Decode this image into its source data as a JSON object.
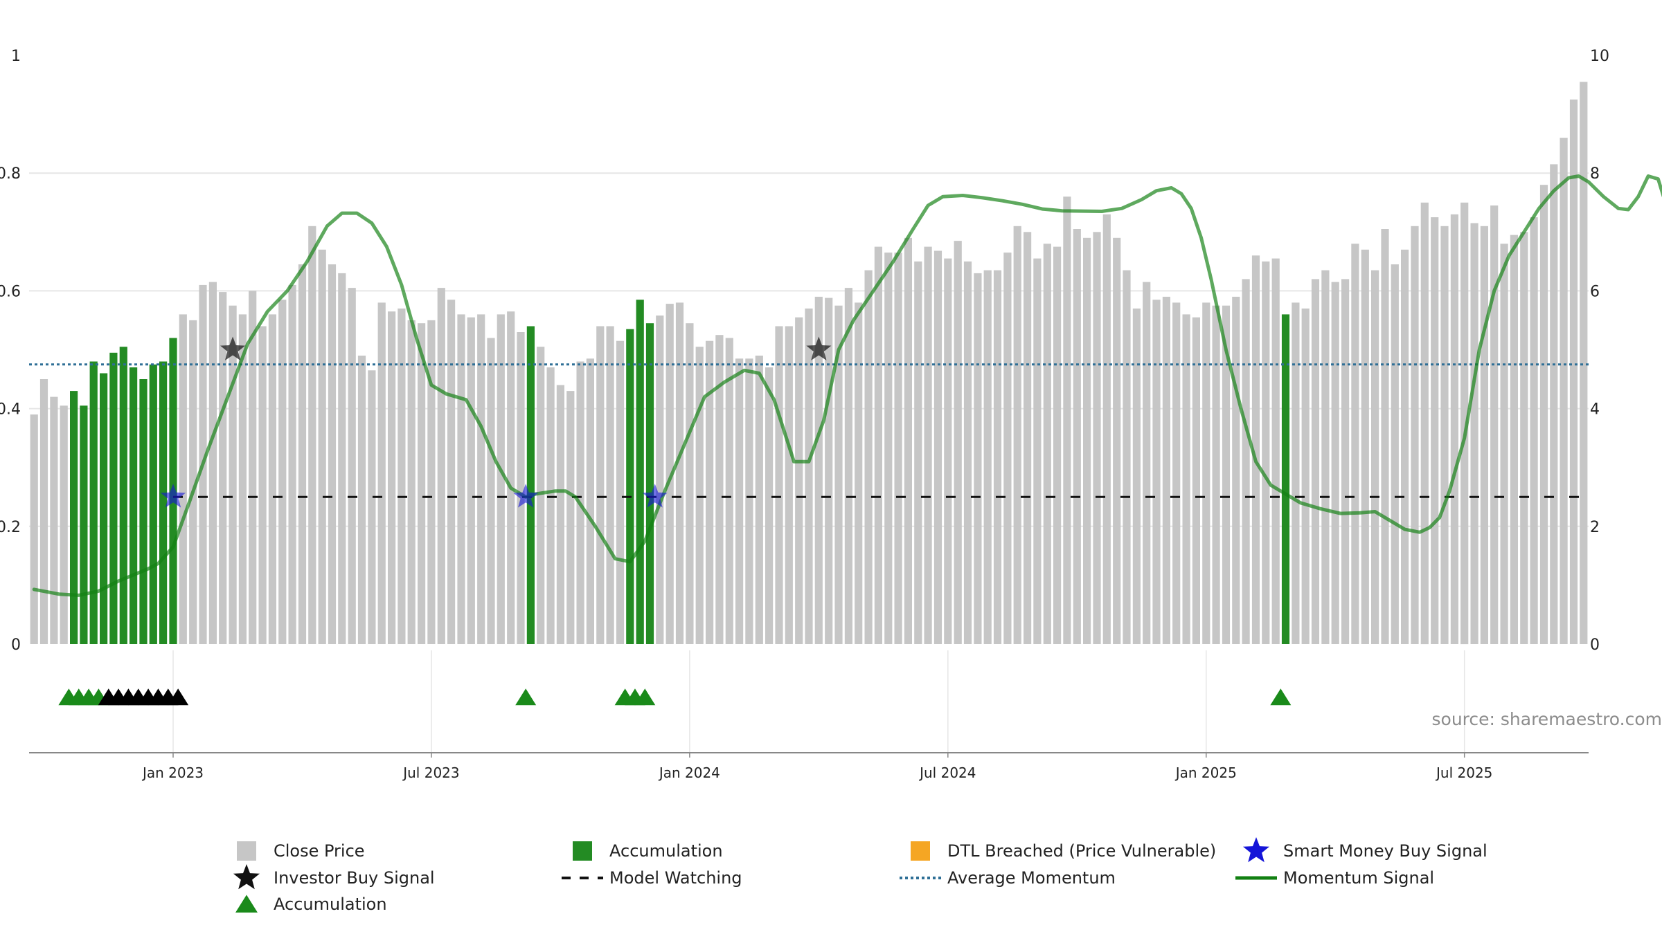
{
  "source": "source: sharemaestro.com",
  "chart_data": {
    "type": "bar",
    "x_axis": {
      "tick_labels": [
        "Jan 2023",
        "Jul 2023",
        "Jan 2024",
        "Jul 2024",
        "Jan 2025",
        "Jul 2025"
      ],
      "tick_weeks": [
        14.5,
        40.5,
        66.5,
        92.5,
        118.5,
        144.5
      ],
      "range_weeks": [
        0,
        157
      ]
    },
    "left_axis": {
      "range": [
        0,
        1
      ],
      "ticks": [
        "0",
        "0.2",
        "0.4",
        "0.6",
        "0.8",
        "1"
      ],
      "tick_values": [
        0,
        0.2,
        0.4,
        0.6,
        0.8,
        1
      ]
    },
    "right_axis": {
      "range": [
        0,
        10
      ],
      "ticks": [
        "0",
        "2",
        "4",
        "6",
        "8",
        "10"
      ],
      "tick_values": [
        0,
        2,
        4,
        6,
        8,
        10
      ]
    },
    "grid": "horizontal",
    "close_price": [
      3.9,
      4.5,
      4.2,
      4.05,
      4.3,
      4.05,
      4.8,
      4.6,
      4.95,
      5.05,
      4.7,
      4.5,
      4.75,
      4.8,
      5.2,
      5.6,
      5.5,
      6.1,
      6.15,
      5.98,
      5.75,
      5.6,
      6.0,
      5.4,
      5.6,
      5.85,
      6.1,
      6.45,
      7.1,
      6.7,
      6.45,
      6.3,
      6.05,
      4.9,
      4.65,
      5.8,
      5.65,
      5.7,
      5.5,
      5.45,
      5.5,
      6.05,
      5.85,
      5.6,
      5.55,
      5.6,
      5.2,
      5.6,
      5.65,
      5.3,
      5.4,
      5.05,
      4.7,
      4.4,
      4.3,
      4.8,
      4.85,
      5.4,
      5.4,
      5.15,
      5.35,
      5.85,
      5.45,
      5.58,
      5.78,
      5.8,
      5.45,
      5.05,
      5.15,
      5.25,
      5.2,
      4.85,
      4.85,
      4.9,
      4.7,
      5.4,
      5.4,
      5.55,
      5.7,
      5.9,
      5.88,
      5.75,
      6.05,
      5.8,
      6.35,
      6.75,
      6.65,
      6.65,
      6.9,
      6.5,
      6.75,
      6.68,
      6.55,
      6.85,
      6.5,
      6.3,
      6.35,
      6.35,
      6.65,
      7.1,
      7.0,
      6.55,
      6.8,
      6.75,
      7.6,
      7.05,
      6.9,
      7.0,
      7.3,
      6.9,
      6.35,
      5.7,
      6.15,
      5.85,
      5.9,
      5.8,
      5.6,
      5.55,
      5.8,
      5.75,
      5.75,
      5.9,
      6.2,
      6.6,
      6.5,
      6.55,
      5.6,
      5.8,
      5.7,
      6.2,
      6.35,
      6.15,
      6.2,
      6.8,
      6.7,
      6.35,
      7.05,
      6.45,
      6.7,
      7.1,
      7.5,
      7.25,
      7.1,
      7.3,
      7.5,
      7.15,
      7.1,
      7.45,
      6.8,
      6.95,
      7.0,
      7.25,
      7.8,
      8.15,
      8.6,
      9.25,
      9.55
    ],
    "accumulation_weeks": [
      4,
      5,
      6,
      7,
      8,
      9,
      10,
      11,
      12,
      13,
      14,
      50,
      60,
      61,
      62,
      126
    ],
    "momentum_signal": [
      [
        0.5,
        0.093
      ],
      [
        3,
        0.085
      ],
      [
        5,
        0.083
      ],
      [
        7,
        0.09
      ],
      [
        9,
        0.107
      ],
      [
        12,
        0.128
      ],
      [
        13,
        0.137
      ],
      [
        14.5,
        0.165
      ],
      [
        16,
        0.235
      ],
      [
        18,
        0.33
      ],
      [
        20,
        0.42
      ],
      [
        22,
        0.51
      ],
      [
        24,
        0.565
      ],
      [
        26,
        0.6
      ],
      [
        28,
        0.65
      ],
      [
        30,
        0.71
      ],
      [
        31.5,
        0.732
      ],
      [
        33,
        0.732
      ],
      [
        34.5,
        0.715
      ],
      [
        36,
        0.675
      ],
      [
        37.5,
        0.61
      ],
      [
        39,
        0.52
      ],
      [
        40.5,
        0.44
      ],
      [
        42,
        0.425
      ],
      [
        44,
        0.415
      ],
      [
        45.5,
        0.37
      ],
      [
        47,
        0.31
      ],
      [
        48.5,
        0.265
      ],
      [
        50,
        0.25
      ],
      [
        51,
        0.255
      ],
      [
        53,
        0.26
      ],
      [
        54,
        0.26
      ],
      [
        55,
        0.25
      ],
      [
        57,
        0.2
      ],
      [
        59,
        0.145
      ],
      [
        60.5,
        0.14
      ],
      [
        62,
        0.175
      ],
      [
        64,
        0.26
      ],
      [
        66,
        0.34
      ],
      [
        68,
        0.42
      ],
      [
        70,
        0.445
      ],
      [
        71,
        0.455
      ],
      [
        72,
        0.465
      ],
      [
        73.5,
        0.46
      ],
      [
        75,
        0.415
      ],
      [
        77,
        0.31
      ],
      [
        78.5,
        0.31
      ],
      [
        80,
        0.38
      ],
      [
        81.5,
        0.5
      ],
      [
        83,
        0.55
      ],
      [
        85,
        0.6
      ],
      [
        87,
        0.65
      ],
      [
        89,
        0.705
      ],
      [
        90.5,
        0.745
      ],
      [
        92,
        0.76
      ],
      [
        94,
        0.762
      ],
      [
        96,
        0.758
      ],
      [
        98,
        0.753
      ],
      [
        100,
        0.747
      ],
      [
        102,
        0.739
      ],
      [
        104,
        0.736
      ],
      [
        108,
        0.735
      ],
      [
        110,
        0.74
      ],
      [
        112,
        0.755
      ],
      [
        113.5,
        0.77
      ],
      [
        115,
        0.775
      ],
      [
        116,
        0.765
      ],
      [
        117,
        0.74
      ],
      [
        118,
        0.69
      ],
      [
        119,
        0.62
      ],
      [
        120.5,
        0.5
      ],
      [
        122,
        0.4
      ],
      [
        123.5,
        0.31
      ],
      [
        125,
        0.27
      ],
      [
        126.5,
        0.255
      ],
      [
        128,
        0.24
      ],
      [
        130,
        0.23
      ],
      [
        132,
        0.222
      ],
      [
        134,
        0.223
      ],
      [
        135.5,
        0.225
      ],
      [
        137,
        0.21
      ],
      [
        138.5,
        0.195
      ],
      [
        140,
        0.19
      ],
      [
        141,
        0.198
      ],
      [
        142,
        0.215
      ],
      [
        143,
        0.26
      ],
      [
        144.5,
        0.35
      ],
      [
        146,
        0.5
      ],
      [
        147.5,
        0.6
      ],
      [
        149,
        0.66
      ],
      [
        150.5,
        0.7
      ],
      [
        152,
        0.74
      ],
      [
        153.5,
        0.77
      ],
      [
        155,
        0.792
      ],
      [
        156,
        0.795
      ],
      [
        157,
        0.785
      ],
      [
        158.5,
        0.76
      ],
      [
        160,
        0.74
      ],
      [
        161,
        0.738
      ],
      [
        162,
        0.76
      ],
      [
        163,
        0.795
      ],
      [
        164,
        0.79
      ],
      [
        165,
        0.735
      ],
      [
        166,
        0.73
      ],
      [
        167,
        0.755
      ]
    ],
    "average_momentum": 0.475,
    "model_watching_level": 0.25,
    "model_watching_from_week": 14.5,
    "investor_buy_signals": [
      [
        20.5,
        0.5
      ],
      [
        79.5,
        0.5
      ]
    ],
    "smart_money_buy_signals": [
      [
        14.5,
        0.25
      ],
      [
        50,
        0.25
      ],
      [
        63,
        0.25
      ]
    ],
    "accumulation_markers": [
      {
        "week": 4,
        "color": "#1a8a1a"
      },
      {
        "week": 5,
        "color": "#1a8a1a"
      },
      {
        "week": 6,
        "color": "#1a8a1a"
      },
      {
        "week": 7,
        "color": "#1a8a1a"
      },
      {
        "week": 8,
        "color": "#000000"
      },
      {
        "week": 9,
        "color": "#000000"
      },
      {
        "week": 10,
        "color": "#000000"
      },
      {
        "week": 11,
        "color": "#000000"
      },
      {
        "week": 12,
        "color": "#000000"
      },
      {
        "week": 13,
        "color": "#000000"
      },
      {
        "week": 14,
        "color": "#000000"
      },
      {
        "week": 15,
        "color": "#000000"
      },
      {
        "week": 50,
        "color": "#1a8a1a"
      },
      {
        "week": 60,
        "color": "#1a8a1a"
      },
      {
        "week": 61,
        "color": "#1a8a1a"
      },
      {
        "week": 62,
        "color": "#1a8a1a"
      },
      {
        "week": 126,
        "color": "#1a8a1a"
      }
    ],
    "colors": {
      "close_price": "#c6c6c6",
      "accumulation": "#238b23",
      "dtl_breached": "#f5a623",
      "smart_money": "#1515d8",
      "investor": "#111111",
      "momentum": "#128012",
      "average_momentum": "#2e6f96",
      "model_watching": "#111111"
    },
    "legend": [
      {
        "label": "Close Price",
        "marker": "square-gray"
      },
      {
        "label": "Accumulation",
        "marker": "square-green"
      },
      {
        "label": "DTL Breached (Price Vulnerable)",
        "marker": "square-orange"
      },
      {
        "label": "Smart Money Buy Signal",
        "marker": "star-blue"
      },
      {
        "label": "Investor Buy Signal",
        "marker": "star-black"
      },
      {
        "label": "Model Watching",
        "marker": "dashed-black"
      },
      {
        "label": "Average Momentum",
        "marker": "dotted-blue"
      },
      {
        "label": "Momentum Signal",
        "marker": "line-green"
      },
      {
        "label": "Accumulation",
        "marker": "triangle-green"
      }
    ]
  }
}
